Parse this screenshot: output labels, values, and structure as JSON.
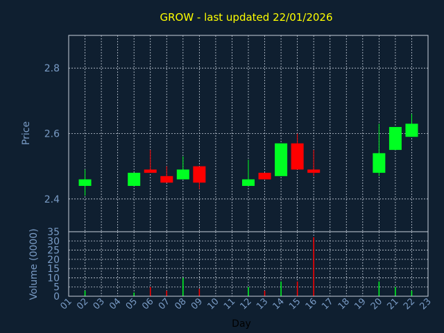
{
  "chart_data": {
    "type": "candlestick",
    "title": "GROW - last updated 22/01/2026",
    "xlabel": "Day",
    "price_panel": {
      "ylabel": "Price",
      "ylim": [
        2.3,
        2.9
      ],
      "yticks": [
        2.4,
        2.6,
        2.8
      ],
      "ytick_labels": [
        "2.4",
        "2.6",
        "2.8"
      ]
    },
    "volume_panel": {
      "ylabel": "Volume (0000)",
      "ylim": [
        0,
        35
      ],
      "yticks": [
        0,
        5,
        10,
        15,
        20,
        25,
        30,
        35
      ],
      "ytick_labels": [
        "0",
        "5",
        "10",
        "15",
        "20",
        "25",
        "30",
        "35"
      ]
    },
    "x_range": [
      1,
      23
    ],
    "x_ticks": [
      "01",
      "02",
      "03",
      "04",
      "05",
      "06",
      "07",
      "08",
      "09",
      "10",
      "11",
      "12",
      "13",
      "14",
      "15",
      "16",
      "17",
      "18",
      "19",
      "20",
      "21",
      "22",
      "23"
    ],
    "up_color": "#00ff22",
    "down_color": "#ff0000",
    "candles": [
      {
        "day": 2,
        "open": 2.44,
        "high": 2.49,
        "low": 2.41,
        "close": 2.46
      },
      {
        "day": 5,
        "open": 2.44,
        "high": 2.48,
        "low": 2.44,
        "close": 2.48
      },
      {
        "day": 6,
        "open": 2.49,
        "high": 2.55,
        "low": 2.48,
        "close": 2.48
      },
      {
        "day": 7,
        "open": 2.47,
        "high": 2.5,
        "low": 2.45,
        "close": 2.45
      },
      {
        "day": 8,
        "open": 2.46,
        "high": 2.53,
        "low": 2.46,
        "close": 2.49
      },
      {
        "day": 9,
        "open": 2.5,
        "high": 2.5,
        "low": 2.43,
        "close": 2.45
      },
      {
        "day": 12,
        "open": 2.44,
        "high": 2.52,
        "low": 2.44,
        "close": 2.46
      },
      {
        "day": 13,
        "open": 2.48,
        "high": 2.48,
        "low": 2.46,
        "close": 2.46
      },
      {
        "day": 14,
        "open": 2.47,
        "high": 2.57,
        "low": 2.47,
        "close": 2.57
      },
      {
        "day": 15,
        "open": 2.57,
        "high": 2.6,
        "low": 2.49,
        "close": 2.49
      },
      {
        "day": 16,
        "open": 2.49,
        "high": 2.55,
        "low": 2.47,
        "close": 2.48
      },
      {
        "day": 20,
        "open": 2.48,
        "high": 2.63,
        "low": 2.47,
        "close": 2.54
      },
      {
        "day": 21,
        "open": 2.55,
        "high": 2.62,
        "low": 2.55,
        "close": 2.62
      },
      {
        "day": 22,
        "open": 2.59,
        "high": 2.66,
        "low": 2.59,
        "close": 2.63
      }
    ],
    "volume": [
      {
        "day": 2,
        "value": 3,
        "direction": "up"
      },
      {
        "day": 5,
        "value": 2,
        "direction": "up"
      },
      {
        "day": 6,
        "value": 5,
        "direction": "down"
      },
      {
        "day": 7,
        "value": 3,
        "direction": "down"
      },
      {
        "day": 8,
        "value": 10,
        "direction": "up"
      },
      {
        "day": 9,
        "value": 4,
        "direction": "down"
      },
      {
        "day": 12,
        "value": 5,
        "direction": "up"
      },
      {
        "day": 13,
        "value": 3,
        "direction": "down"
      },
      {
        "day": 14,
        "value": 8,
        "direction": "up"
      },
      {
        "day": 15,
        "value": 8,
        "direction": "down"
      },
      {
        "day": 16,
        "value": 32,
        "direction": "down"
      },
      {
        "day": 20,
        "value": 8,
        "direction": "up"
      },
      {
        "day": 21,
        "value": 5,
        "direction": "up"
      },
      {
        "day": 22,
        "value": 3,
        "direction": "up"
      }
    ]
  }
}
